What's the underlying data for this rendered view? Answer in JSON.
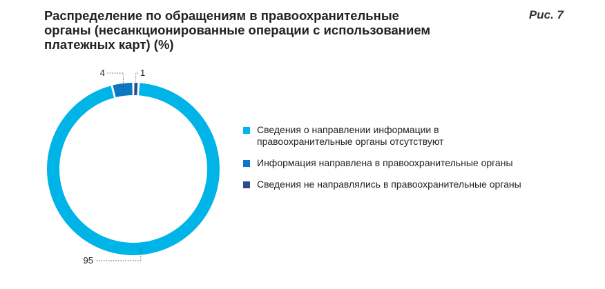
{
  "title": "Распределение по обращениям в правоохранительные органы (несанкционированные операции с использованием платежных карт) (%)",
  "figure_label": "Рис. 7",
  "colors": {
    "light_blue": "#00b4e8",
    "mid_blue": "#0a78c2",
    "dark_blue": "#2e4a8c"
  },
  "chart_data": {
    "type": "pie",
    "donut": true,
    "title": "Распределение по обращениям в правоохранительные органы (несанкционированные операции с использованием платежных карт) (%)",
    "series": [
      {
        "name": "Сведения о направлении информации в правоохранительные органы отсутствуют",
        "value": 95,
        "label": "95",
        "color": "#00b4e8"
      },
      {
        "name": "Информация направлена в правоохранительные органы",
        "value": 4,
        "label": "4",
        "color": "#0a78c2"
      },
      {
        "name": "Сведения не направлялись в правоохранительные органы",
        "value": 1,
        "label": "1",
        "color": "#2e4a8c"
      }
    ],
    "legend_position": "right"
  }
}
